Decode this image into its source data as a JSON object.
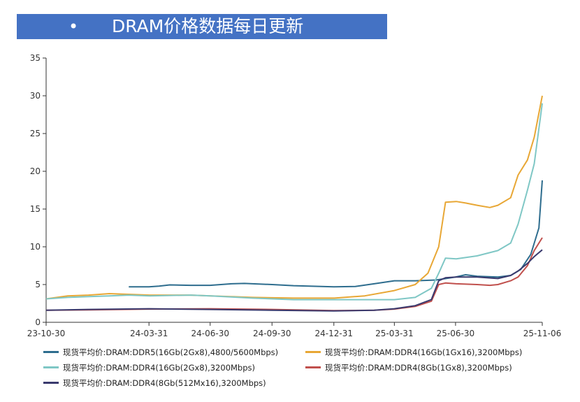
{
  "header": {
    "bullet": "•",
    "title": "DRAM价格数据每日更新"
  },
  "chart_data": {
    "type": "line",
    "title": "DRAM价格数据每日更新",
    "xlabel": "",
    "ylabel": "",
    "ylim": [
      0,
      35
    ],
    "y_ticks": [
      0,
      5,
      10,
      15,
      20,
      25,
      30,
      35
    ],
    "x_range": [
      "2023-10-30",
      "2025-11-06"
    ],
    "x_ticks": [
      "23-10-30",
      "24-03-31",
      "24-06-30",
      "24-09-30",
      "24-12-31",
      "25-03-31",
      "25-06-30",
      "25-11-06"
    ],
    "grid": false,
    "legend_position": "bottom",
    "series": [
      {
        "name": "现货平均价:DRAM:DDR5(16Gb(2Gx8),4800/5600Mbps)",
        "color": "#2e6d8e",
        "x": [
          "2024-03-01",
          "2024-03-31",
          "2024-04-15",
          "2024-05-01",
          "2024-06-01",
          "2024-06-30",
          "2024-08-01",
          "2024-08-20",
          "2024-09-30",
          "2024-11-01",
          "2024-12-31",
          "2025-02-01",
          "2025-03-01",
          "2025-03-31",
          "2025-05-01",
          "2025-06-01",
          "2025-06-30",
          "2025-07-15",
          "2025-08-01",
          "2025-09-01",
          "2025-09-20",
          "2025-10-05",
          "2025-10-20",
          "2025-11-01",
          "2025-11-06"
        ],
        "values": [
          4.7,
          4.7,
          4.8,
          4.95,
          4.9,
          4.9,
          5.1,
          5.15,
          5.0,
          4.85,
          4.7,
          4.75,
          5.1,
          5.5,
          5.5,
          5.6,
          6.0,
          6.3,
          6.1,
          6.0,
          6.2,
          7.0,
          9.0,
          12.5,
          18.8
        ]
      },
      {
        "name": "现货平均价:DRAM:DDR4(16Gb(1Gx16),3200Mbps)",
        "color": "#e8a735",
        "x": [
          "2023-10-30",
          "2023-12-01",
          "2024-01-01",
          "2024-02-01",
          "2024-03-01",
          "2024-04-01",
          "2024-06-01",
          "2024-07-01",
          "2024-09-01",
          "2024-11-01",
          "2025-01-01",
          "2025-02-15",
          "2025-03-31",
          "2025-05-01",
          "2025-05-20",
          "2025-06-05",
          "2025-06-15",
          "2025-07-01",
          "2025-07-15",
          "2025-08-01",
          "2025-08-20",
          "2025-09-01",
          "2025-09-20",
          "2025-10-01",
          "2025-10-15",
          "2025-10-25",
          "2025-11-06"
        ],
        "values": [
          3.1,
          3.5,
          3.6,
          3.8,
          3.7,
          3.6,
          3.6,
          3.5,
          3.3,
          3.2,
          3.2,
          3.5,
          4.2,
          5.0,
          6.5,
          10.0,
          15.9,
          16.0,
          15.8,
          15.5,
          15.2,
          15.5,
          16.5,
          19.5,
          21.5,
          24.5,
          30.0
        ]
      },
      {
        "name": "现货平均价:DRAM:DDR4(16Gb(2Gx8),3200Mbps)",
        "color": "#7fc7c5",
        "x": [
          "2023-10-30",
          "2023-12-01",
          "2024-01-01",
          "2024-02-01",
          "2024-03-01",
          "2024-04-01",
          "2024-06-01",
          "2024-07-01",
          "2024-09-01",
          "2024-11-01",
          "2025-01-01",
          "2025-02-15",
          "2025-03-31",
          "2025-05-01",
          "2025-05-25",
          "2025-06-05",
          "2025-06-15",
          "2025-07-01",
          "2025-08-01",
          "2025-09-01",
          "2025-09-20",
          "2025-10-01",
          "2025-10-15",
          "2025-10-25",
          "2025-11-06"
        ],
        "values": [
          3.1,
          3.3,
          3.4,
          3.5,
          3.6,
          3.5,
          3.6,
          3.5,
          3.2,
          3.0,
          3.0,
          3.0,
          3.0,
          3.3,
          4.5,
          6.5,
          8.5,
          8.4,
          8.8,
          9.5,
          10.5,
          13.0,
          17.5,
          21.0,
          29.0
        ]
      },
      {
        "name": "现货平均价:DRAM:DDR4(8Gb(1Gx8),3200Mbps)",
        "color": "#c0504d",
        "x": [
          "2023-10-30",
          "2024-01-01",
          "2024-03-31",
          "2024-06-30",
          "2024-09-30",
          "2024-12-31",
          "2025-03-01",
          "2025-03-31",
          "2025-05-01",
          "2025-05-25",
          "2025-06-05",
          "2025-06-15",
          "2025-07-01",
          "2025-08-01",
          "2025-08-20",
          "2025-09-01",
          "2025-09-20",
          "2025-10-01",
          "2025-10-15",
          "2025-10-25",
          "2025-11-06"
        ],
        "values": [
          1.6,
          1.65,
          1.75,
          1.8,
          1.7,
          1.55,
          1.6,
          1.75,
          2.1,
          2.8,
          5.0,
          5.2,
          5.1,
          5.0,
          4.9,
          5.0,
          5.5,
          6.0,
          7.5,
          9.5,
          11.2
        ]
      },
      {
        "name": "现货平均价:DRAM:DDR4(8Gb(512Mx16),3200Mbps)",
        "color": "#3a3a6e",
        "x": [
          "2023-10-30",
          "2024-01-01",
          "2024-03-31",
          "2024-06-30",
          "2024-09-30",
          "2024-12-31",
          "2025-03-01",
          "2025-03-31",
          "2025-05-01",
          "2025-05-25",
          "2025-06-05",
          "2025-06-15",
          "2025-07-01",
          "2025-08-01",
          "2025-09-01",
          "2025-09-20",
          "2025-10-01",
          "2025-10-15",
          "2025-10-25",
          "2025-11-06"
        ],
        "values": [
          1.6,
          1.7,
          1.8,
          1.7,
          1.6,
          1.5,
          1.6,
          1.8,
          2.2,
          3.0,
          5.5,
          5.9,
          6.0,
          6.0,
          5.8,
          6.2,
          6.8,
          7.8,
          8.7,
          9.6
        ]
      }
    ]
  }
}
